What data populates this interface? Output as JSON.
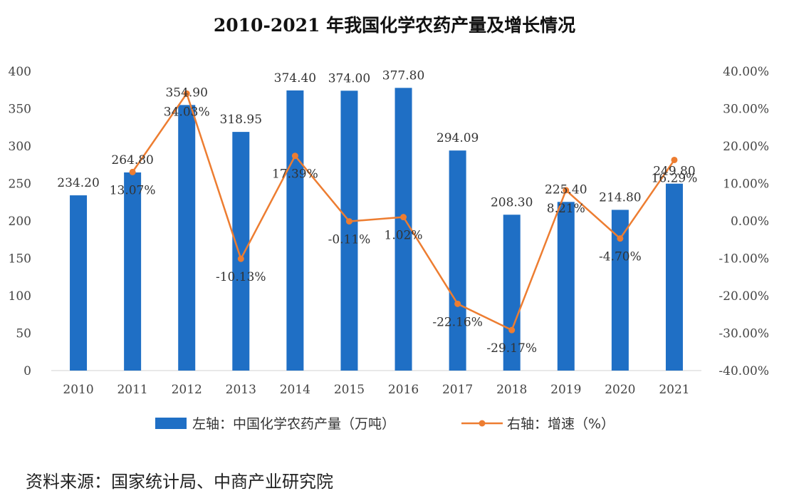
{
  "colors": {
    "bar": "#1f6fc5",
    "line": "#ed7d31",
    "text": "#333333",
    "axis_text": "#444444",
    "axis_line": "#d0d0d0"
  },
  "chart_data": {
    "type": "bar",
    "title": "2010-2021 年我国化学农药产量及增长情况",
    "categories": [
      "2010",
      "2011",
      "2012",
      "2013",
      "2014",
      "2015",
      "2016",
      "2017",
      "2018",
      "2019",
      "2020",
      "2021"
    ],
    "series": [
      {
        "name": "左轴：中国化学农药产量（万吨）",
        "type": "bar",
        "axis": "left",
        "values": [
          234.2,
          264.8,
          354.9,
          318.95,
          374.4,
          374.0,
          377.8,
          294.09,
          208.3,
          225.4,
          214.8,
          249.8
        ],
        "labels": [
          "234.20",
          "264.80",
          "354.90",
          "318.95",
          "374.40",
          "374.00",
          "377.80",
          "294.09",
          "208.30",
          "225.40",
          "214.80",
          "249.80"
        ]
      },
      {
        "name": "右轴：增速（%）",
        "type": "line",
        "axis": "right",
        "values": [
          null,
          13.07,
          34.03,
          -10.13,
          17.39,
          -0.11,
          1.02,
          -22.16,
          -29.17,
          8.21,
          -4.7,
          16.29
        ],
        "labels": [
          "",
          "13.07%",
          "34.03%",
          "-10.13%",
          "17.39%",
          "-0.11%",
          "1.02%",
          "-22.16%",
          "-29.17%",
          "8.21%",
          "-4.70%",
          "16.29%"
        ]
      }
    ],
    "y_left": {
      "lim": [
        0,
        400
      ],
      "ticks": [
        0,
        50,
        100,
        150,
        200,
        250,
        300,
        350,
        400
      ],
      "tick_labels": [
        "0",
        "50",
        "100",
        "150",
        "200",
        "250",
        "300",
        "350",
        "400"
      ]
    },
    "y_right": {
      "lim": [
        -40,
        40
      ],
      "ticks": [
        -40,
        -30,
        -20,
        -10,
        0,
        10,
        20,
        30,
        40
      ],
      "tick_labels": [
        "-40.00%",
        "-30.00%",
        "-20.00%",
        "-10.00%",
        "0.00%",
        "10.00%",
        "20.00%",
        "30.00%",
        "40.00%"
      ]
    },
    "legend": {
      "position": "bottom",
      "items": [
        "左轴：中国化学农药产量（万吨）",
        "右轴：增速（%）"
      ]
    }
  },
  "source": "资料来源：国家统计局、中商产业研究院"
}
